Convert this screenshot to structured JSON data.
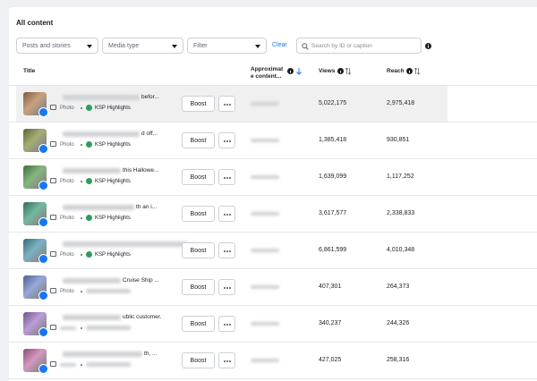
{
  "header": {
    "title": "All content"
  },
  "filters": {
    "posts": "Posts and stories",
    "media": "Media type",
    "filter": "Filter",
    "clear": "Clear",
    "search": "Search by ID or caption"
  },
  "table": {
    "columns": [
      "Title",
      "Approximate content...",
      "Views",
      "Reach"
    ],
    "boost": "Boost",
    "rows": [
      {
        "title": "befor...",
        "type": "Photo",
        "page": "KSP Highlights",
        "views": "5,022,175",
        "reach": "2,975,418"
      },
      {
        "title": "d off...",
        "type": "Photo",
        "page": "KSP Highlights",
        "views": "1,385,418",
        "reach": "930,851"
      },
      {
        "title": "this Hallowe...",
        "type": "Photo",
        "page": "KSP Highlights",
        "views": "1,639,099",
        "reach": "1,117,252"
      },
      {
        "title": "th an i...",
        "type": "Photo",
        "page": "KSP Highlights",
        "views": "3,617,577",
        "reach": "2,338,833"
      },
      {
        "type": "Photo",
        "page": "KSP Highlights",
        "views": "6,861,599",
        "reach": "4,010,348"
      },
      {
        "title": "Cruise Ship ...",
        "type": "Photo",
        "views": "407,301",
        "reach": "264,373"
      },
      {
        "title": "ublic customer.",
        "views": "340,237",
        "reach": "244,326"
      },
      {
        "title": "th, ...",
        "views": "427,025",
        "reach": "258,316"
      }
    ]
  }
}
